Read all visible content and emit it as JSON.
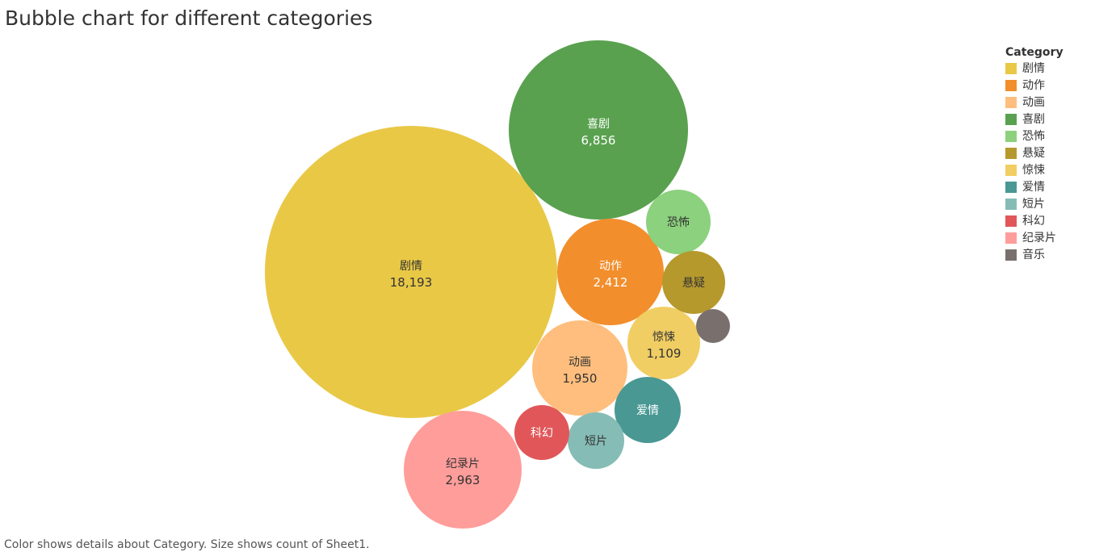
{
  "title": "Bubble chart for different categories",
  "caption": "Color shows details about Category.  Size shows count of Sheet1.",
  "legend": {
    "title": "Category",
    "placement": "top-right",
    "items": [
      {
        "label": "剧情",
        "color": "#e9c846"
      },
      {
        "label": "动作",
        "color": "#f28e2c"
      },
      {
        "label": "动画",
        "color": "#ffbe7d"
      },
      {
        "label": "喜剧",
        "color": "#59a14f"
      },
      {
        "label": "恐怖",
        "color": "#8cd17d"
      },
      {
        "label": "悬疑",
        "color": "#b6992d"
      },
      {
        "label": "惊悚",
        "color": "#f1ce63"
      },
      {
        "label": "爱情",
        "color": "#499894"
      },
      {
        "label": "短片",
        "color": "#86bcb6"
      },
      {
        "label": "科幻",
        "color": "#e15759"
      },
      {
        "label": "纪录片",
        "color": "#ff9d9a"
      },
      {
        "label": "音乐",
        "color": "#79706e"
      }
    ]
  },
  "chart_data": {
    "type": "bubble",
    "title": "Bubble chart for different categories",
    "size_measure": "count of Sheet1",
    "color_dimension": "Category",
    "bubbles": [
      {
        "category": "剧情",
        "value": 18193,
        "value_label": "18,193",
        "color": "#e9c846",
        "text_color": "#333333"
      },
      {
        "category": "喜剧",
        "value": 6856,
        "value_label": "6,856",
        "color": "#59a14f",
        "text_color": "#ffffff"
      },
      {
        "category": "纪录片",
        "value": 2963,
        "value_label": "2,963",
        "color": "#ff9d9a",
        "text_color": "#333333"
      },
      {
        "category": "动作",
        "value": 2412,
        "value_label": "2,412",
        "color": "#f28e2c",
        "text_color": "#ffffff"
      },
      {
        "category": "动画",
        "value": 1950,
        "value_label": "1,950",
        "color": "#ffbe7d",
        "text_color": "#333333"
      },
      {
        "category": "惊悚",
        "value": 1109,
        "value_label": "1,109",
        "color": "#f1ce63",
        "text_color": "#333333"
      },
      {
        "category": "爱情",
        "value": null,
        "value_label": "",
        "color": "#499894",
        "text_color": "#ffffff"
      },
      {
        "category": "恐怖",
        "value": null,
        "value_label": "",
        "color": "#8cd17d",
        "text_color": "#333333"
      },
      {
        "category": "悬疑",
        "value": null,
        "value_label": "",
        "color": "#b6992d",
        "text_color": "#333333"
      },
      {
        "category": "短片",
        "value": null,
        "value_label": "",
        "color": "#86bcb6",
        "text_color": "#333333"
      },
      {
        "category": "科幻",
        "value": null,
        "value_label": "",
        "color": "#e15759",
        "text_color": "#ffffff"
      },
      {
        "category": "音乐",
        "value": null,
        "value_label": "",
        "color": "#79706e",
        "text_color": "#ffffff",
        "show_label": false
      }
    ]
  }
}
